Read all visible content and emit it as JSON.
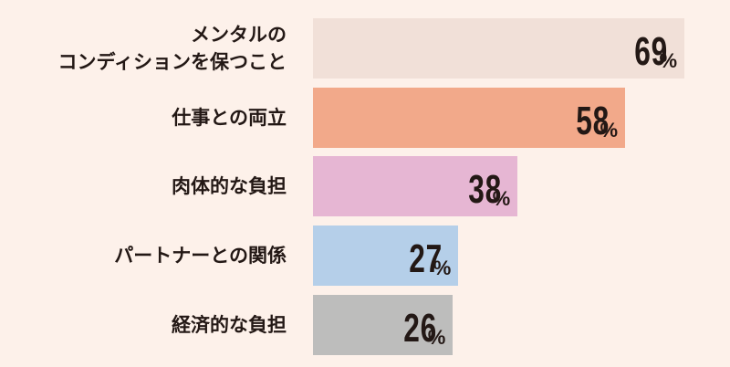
{
  "chart_data": {
    "type": "bar",
    "orientation": "horizontal",
    "categories": [
      "メンタルの\nコンディションを保つこと",
      "仕事との両立",
      "肉体的な負担",
      "パートナーとの関係",
      "経済的な負担"
    ],
    "values": [
      69,
      58,
      38,
      27,
      26
    ],
    "colors": [
      "#f1e0d8",
      "#f2a98a",
      "#e6b6d3",
      "#b5cfe9",
      "#bdbdbc"
    ],
    "unit": "%"
  }
}
